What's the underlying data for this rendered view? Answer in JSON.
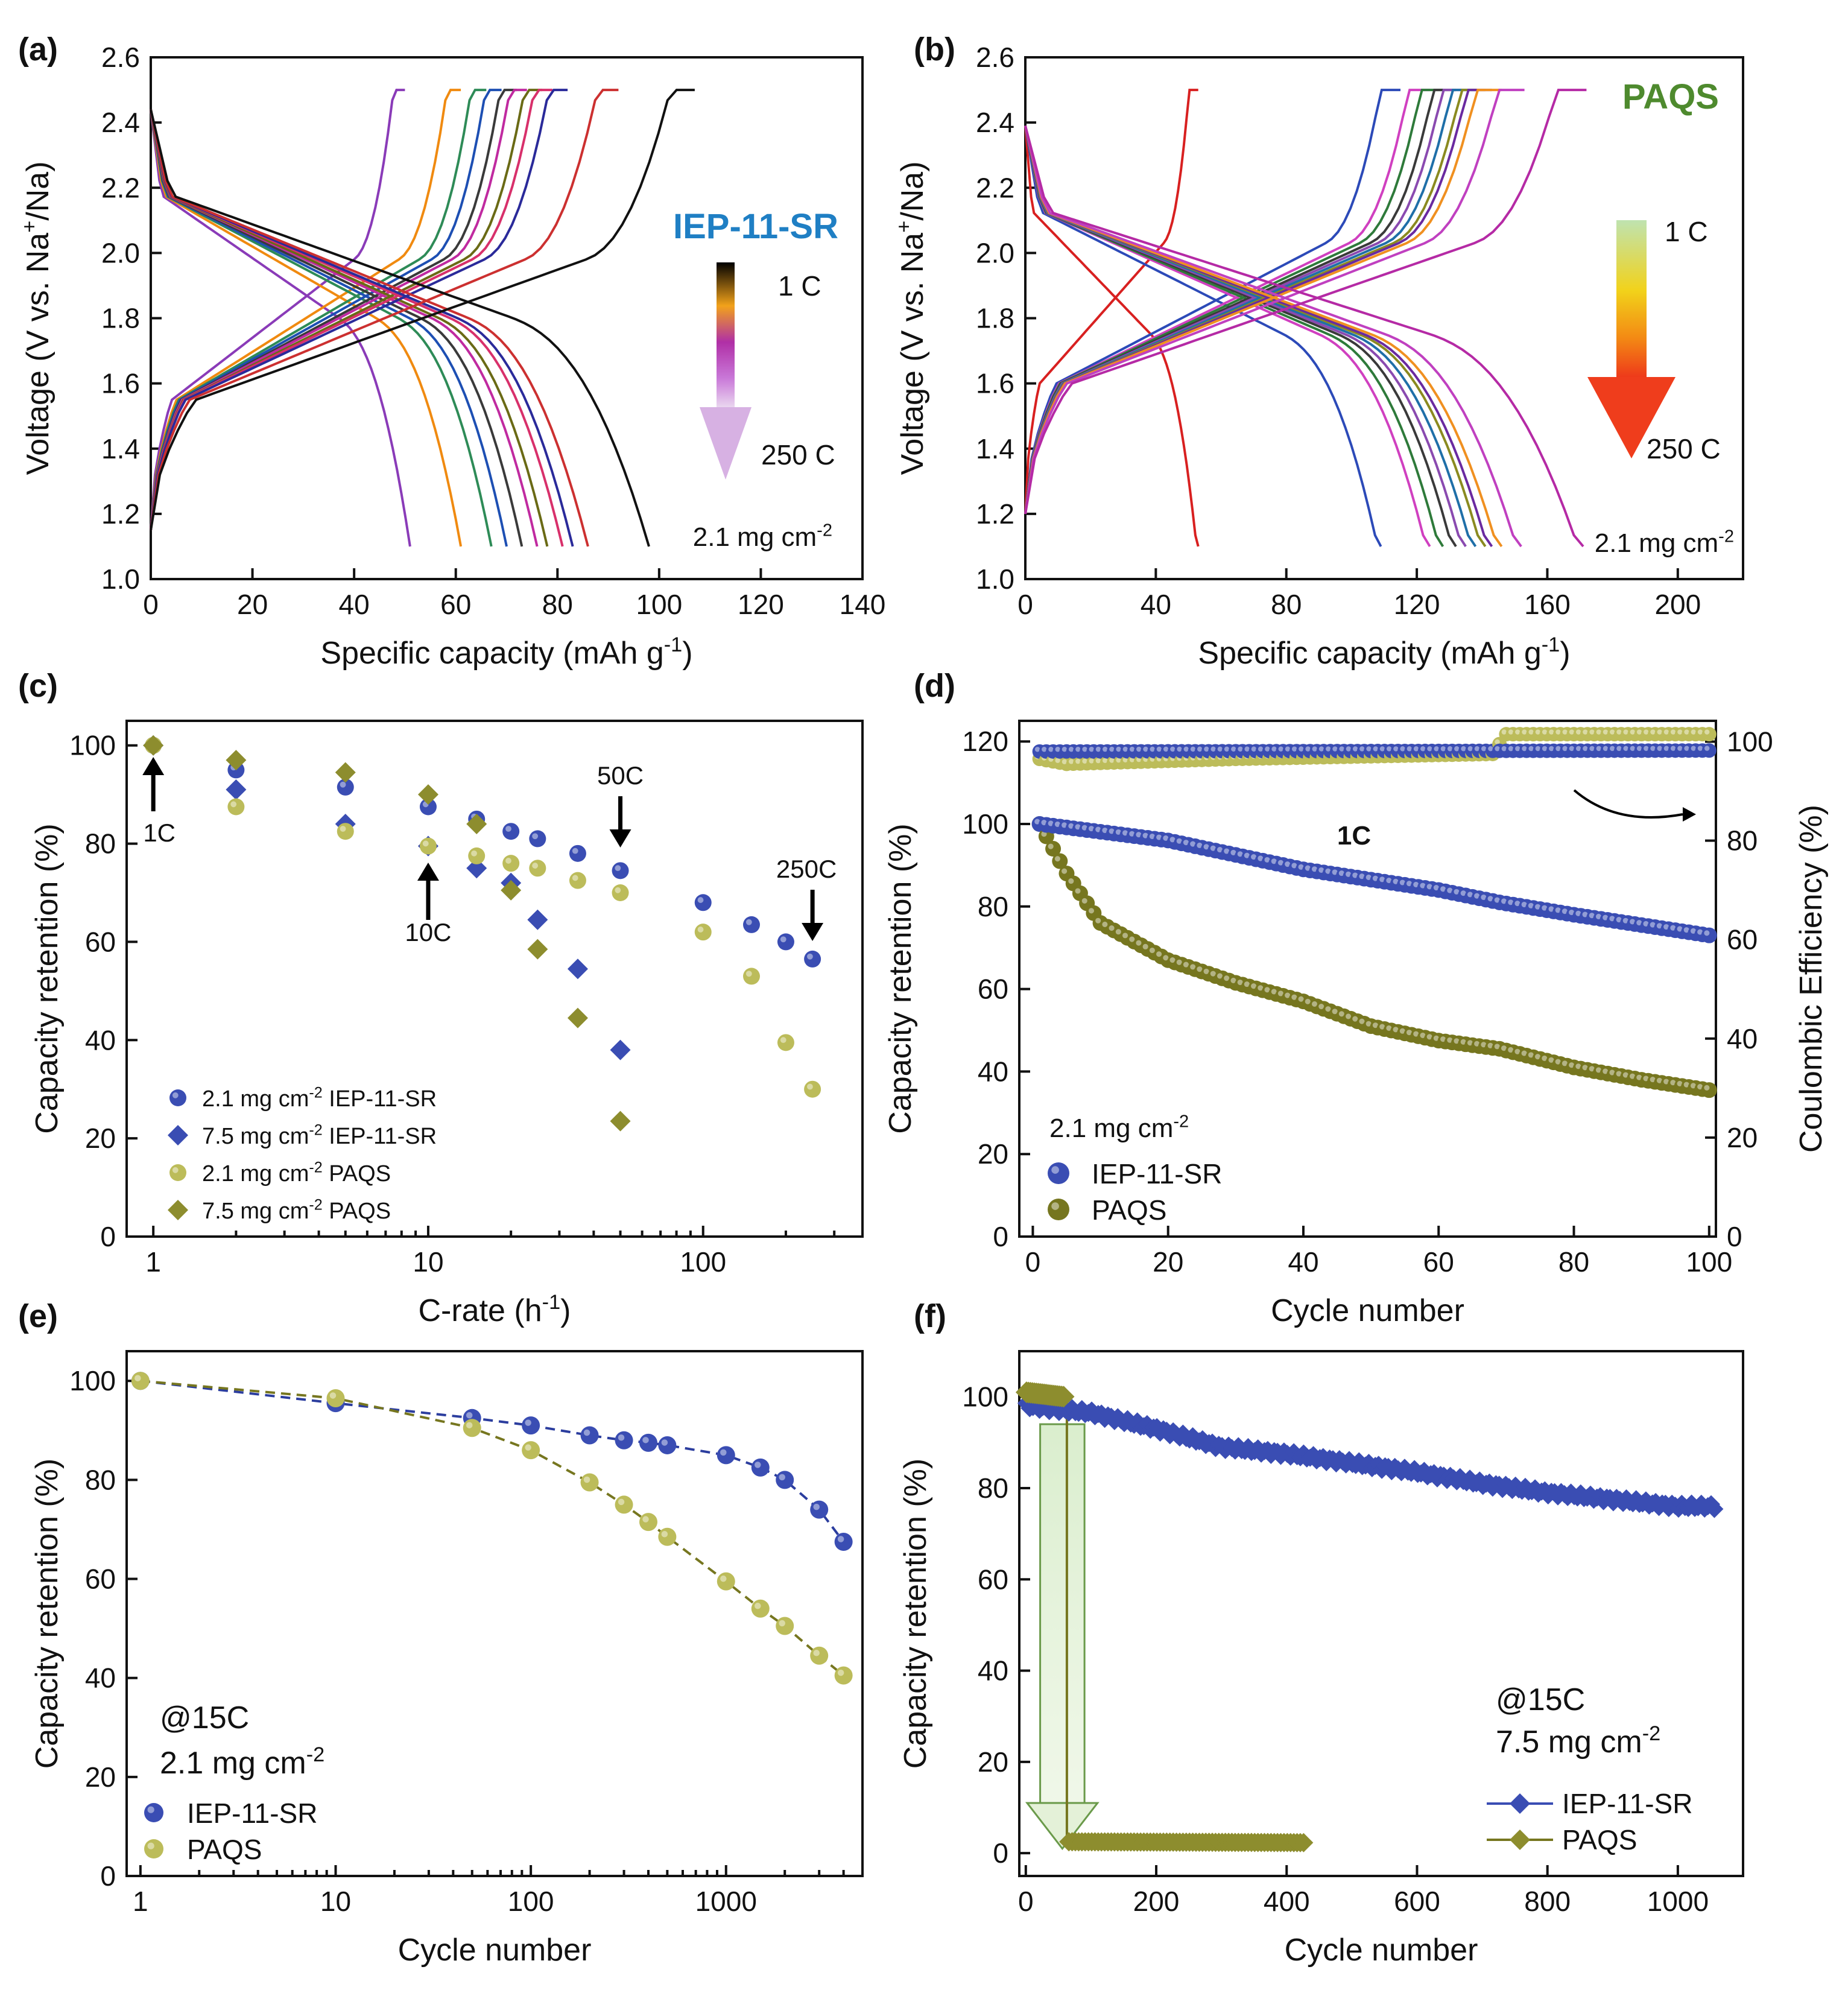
{
  "colors": {
    "axis": "#111111",
    "ieb_blue": "#3a4db3",
    "ieb_dark": "#2b3d9e",
    "paqs_olive": "#76761f",
    "paqs_light": "#bcbc5a",
    "paqs_diamond": "#8d8d2e",
    "title_blue": "#1f7fc4",
    "title_green": "#4e8a2e",
    "curves_a": [
      "#8a3bb8",
      "#f08a10",
      "#2e8b57",
      "#1d4fb3",
      "#3a3a3a",
      "#c02aa0",
      "#6a6a15",
      "#d8306b",
      "#2a2a9a",
      "#cc3030",
      "#111111"
    ],
    "curves_b": [
      "#d82020",
      "#2c4ab8",
      "#d040c0",
      "#2e7a3a",
      "#3a3a3a",
      "#8a4ab0",
      "#1f6fa8",
      "#8a8a20",
      "#6a2aa0",
      "#f09020",
      "#c040c0",
      "#b52aa5"
    ]
  },
  "panels": {
    "a": {
      "tag": "(a)",
      "ylabel": "Voltage (V vs. Na⁺/Na)",
      "ylabel_main": "Voltage (V vs. Na",
      "ylabel_sup": "+",
      "ylabel_end": "/Na)",
      "xlabel_main": "Specific capacity (mAh g",
      "xlabel_sup": "-1",
      "xlabel_end": ")",
      "title": "IEP-11-SR",
      "rate_high": "1 C",
      "rate_low": "250 C",
      "loading": "2.1 mg cm",
      "loading_sup": "-2"
    },
    "b": {
      "tag": "(b)",
      "ylabel_main": "Voltage (V vs. Na",
      "ylabel_sup": "+",
      "ylabel_end": "/Na)",
      "xlabel_main": "Specific capacity (mAh g",
      "xlabel_sup": "-1",
      "xlabel_end": ")",
      "title": "PAQS",
      "rate_high": "1 C",
      "rate_low": "250 C",
      "loading": "2.1 mg cm",
      "loading_sup": "-2"
    },
    "c": {
      "tag": "(c)",
      "ylabel": "Capacity retention (%)",
      "xlabel_main": "C-rate (h",
      "xlabel_sup": "-1",
      "xlabel_end": ")",
      "ann_1c": "1C",
      "ann_10c": "10C",
      "ann_50c": "50C",
      "ann_250c": "250C",
      "legend": [
        {
          "main": "2.1 mg cm",
          "sup": "-2",
          "tail": " IEP-11-SR"
        },
        {
          "main": "7.5 mg cm",
          "sup": "-2",
          "tail": " IEP-11-SR"
        },
        {
          "main": "2.1 mg cm",
          "sup": "-2",
          "tail": " PAQS"
        },
        {
          "main": "7.5 mg cm",
          "sup": "-2",
          "tail": " PAQS"
        }
      ]
    },
    "d": {
      "tag": "(d)",
      "ylabel": "Capacity retention (%)",
      "ylabel2": "Coulombic Efficiency (%)",
      "xlabel": "Cycle number",
      "rate": "1C",
      "loading": "2.1 mg cm",
      "loading_sup": "-2",
      "legend": [
        "IEP-11-SR",
        "PAQS"
      ]
    },
    "e": {
      "tag": "(e)",
      "ylabel": "Capacity retention (%)",
      "xlabel": "Cycle number",
      "rate": "@15C",
      "loading": "2.1 mg cm",
      "loading_sup": "-2",
      "legend": [
        "IEP-11-SR",
        "PAQS"
      ]
    },
    "f": {
      "tag": "(f)",
      "ylabel": "Capacity retention (%)",
      "xlabel": "Cycle number",
      "rate": "@15C",
      "loading": "7.5 mg cm",
      "loading_sup": "-2",
      "legend": [
        "IEP-11-SR",
        "PAQS"
      ]
    }
  },
  "chart_data": [
    {
      "id": "a",
      "type": "line",
      "title": "IEP-11-SR",
      "xlabel": "Specific capacity (mAh g-1)",
      "ylabel": "Voltage (V vs. Na+/Na)",
      "xlim": [
        0,
        140
      ],
      "ylim": [
        1.0,
        2.6
      ],
      "xticks": [
        0,
        20,
        40,
        60,
        80,
        100,
        120,
        140
      ],
      "yticks": [
        1.0,
        1.2,
        1.4,
        1.6,
        1.8,
        2.0,
        2.2,
        2.4,
        2.6
      ],
      "series_note": "charge/discharge profiles from 1 C to 250 C",
      "capacities": [
        51,
        61,
        67,
        70,
        73,
        76,
        78,
        81,
        83,
        86,
        98
      ],
      "charge_capacities": [
        50,
        61,
        66,
        69,
        72,
        74,
        77,
        79,
        82,
        92,
        107
      ]
    },
    {
      "id": "b",
      "type": "line",
      "title": "PAQS",
      "xlabel": "Specific capacity (mAh g-1)",
      "ylabel": "Voltage (V vs. Na+/Na)",
      "xlim": [
        0,
        220
      ],
      "ylim": [
        1.0,
        2.6
      ],
      "xticks": [
        0,
        40,
        80,
        120,
        160,
        200
      ],
      "yticks": [
        1.0,
        1.2,
        1.4,
        1.6,
        1.8,
        2.0,
        2.2,
        2.4,
        2.6
      ],
      "capacities": [
        53,
        109,
        124,
        128,
        132,
        135,
        138,
        141,
        143,
        146,
        152,
        171
      ],
      "charge_capacities": [
        53,
        115,
        124,
        128,
        132,
        135,
        138,
        141,
        143,
        146,
        153,
        172
      ]
    },
    {
      "id": "c",
      "type": "scatter",
      "xscale": "log",
      "xlabel": "C-rate (h-1)",
      "ylabel": "Capacity retention (%)",
      "xlim": [
        0.8,
        380
      ],
      "ylim": [
        0,
        105
      ],
      "xticks": [
        1,
        10,
        100
      ],
      "yticks": [
        0,
        20,
        40,
        60,
        80,
        100
      ],
      "series": [
        {
          "name": "2.1 mg cm-2 IEP-11-SR",
          "marker": "circle",
          "x": [
            1,
            2,
            5,
            10,
            15,
            20,
            25,
            35,
            50,
            100,
            150,
            200,
            250
          ],
          "values": [
            100,
            95,
            91.5,
            87.5,
            85,
            82.5,
            81,
            78,
            74.5,
            68,
            63.5,
            60,
            56.5
          ]
        },
        {
          "name": "7.5 mg cm-2 IEP-11-SR",
          "marker": "diamond",
          "x": [
            1,
            2,
            5,
            10,
            15,
            20,
            25,
            35,
            50
          ],
          "values": [
            100,
            91,
            84,
            79.5,
            75,
            72,
            64.5,
            54.5,
            38
          ]
        },
        {
          "name": "2.1 mg cm-2 PAQS",
          "marker": "circle",
          "x": [
            1,
            2,
            5,
            10,
            15,
            20,
            25,
            35,
            50,
            100,
            150,
            200,
            250
          ],
          "values": [
            100,
            87.5,
            82.5,
            79.5,
            77.5,
            76,
            75,
            72.5,
            70,
            62,
            53,
            39.5,
            30
          ]
        },
        {
          "name": "7.5 mg cm-2 PAQS",
          "marker": "diamond",
          "x": [
            1,
            2,
            5,
            10,
            15,
            20,
            25,
            35,
            50
          ],
          "values": [
            100,
            97,
            94.5,
            90,
            84,
            70.5,
            58.5,
            44.5,
            23.5
          ]
        }
      ]
    },
    {
      "id": "d",
      "type": "scatter",
      "xlabel": "Cycle number",
      "ylabel": "Capacity retention (%)",
      "y2label": "Coulombic Efficiency (%)",
      "xlim": [
        -2,
        101
      ],
      "ylim": [
        0,
        125
      ],
      "y2lim": [
        0,
        104.2
      ],
      "xticks": [
        0,
        20,
        40,
        60,
        80,
        100
      ],
      "yticks": [
        0,
        20,
        40,
        60,
        80,
        100,
        120
      ],
      "y2ticks": [
        0,
        20,
        40,
        60,
        80,
        100
      ],
      "series": [
        {
          "name": "IEP-11-SR",
          "axis": "left",
          "x_start": 1,
          "x_end": 100,
          "values_at": {
            "1": 100,
            "20": 96,
            "40": 89,
            "60": 84,
            "69": 81,
            "80": 78,
            "100": 73
          }
        },
        {
          "name": "PAQS",
          "axis": "left",
          "x_start": 1,
          "x_end": 100,
          "values_at": {
            "1": 100,
            "5": 88,
            "10": 76,
            "20": 67,
            "30": 61.5,
            "40": 57,
            "50": 51,
            "60": 47.5,
            "69": 45.5,
            "80": 41,
            "90": 38,
            "100": 35.5
          }
        },
        {
          "name": "IEP-11-SR CE",
          "axis": "right",
          "values_at": {
            "1": 98,
            "100": 98.2
          }
        },
        {
          "name": "PAQS CE",
          "axis": "right",
          "values_at": {
            "1": 96.5,
            "5": 95.5,
            "30": 96.5,
            "68": 97.5,
            "70": 101.5,
            "100": 101.5
          }
        }
      ]
    },
    {
      "id": "e",
      "type": "line",
      "xscale": "log",
      "xlabel": "Cycle number",
      "ylabel": "Capacity retention (%)",
      "xlim": [
        0.85,
        5000
      ],
      "ylim": [
        0,
        106
      ],
      "xticks": [
        1,
        10,
        100,
        1000
      ],
      "yticks": [
        0,
        20,
        40,
        60,
        80,
        100
      ],
      "series": [
        {
          "name": "IEP-11-SR",
          "x": [
            1,
            10,
            50,
            100,
            200,
            300,
            400,
            500,
            1000,
            1500,
            2000,
            3000,
            4000
          ],
          "values": [
            100,
            95.5,
            92.5,
            91,
            89,
            88,
            87.5,
            87,
            85,
            82.5,
            80,
            74,
            67.5
          ]
        },
        {
          "name": "PAQS",
          "x": [
            1,
            10,
            50,
            100,
            200,
            300,
            400,
            500,
            1000,
            1500,
            2000,
            3000,
            4000
          ],
          "values": [
            100,
            96.5,
            90.5,
            86,
            79.5,
            75,
            71.5,
            68.5,
            59.5,
            54,
            50.5,
            44.5,
            40.5
          ]
        }
      ]
    },
    {
      "id": "f",
      "type": "line",
      "xlabel": "Cycle number",
      "ylabel": "Capacity retention (%)",
      "xlim": [
        -10,
        1100
      ],
      "ylim": [
        -5,
        110
      ],
      "xticks": [
        0,
        200,
        400,
        600,
        800,
        1000
      ],
      "yticks": [
        0,
        20,
        40,
        60,
        80,
        100
      ],
      "series": [
        {
          "name": "IEP-11-SR",
          "values_at": {
            "1": 98,
            "100": 96.5,
            "200": 93,
            "300": 89,
            "400": 87.5,
            "500": 85.5,
            "600": 83.5,
            "700": 81,
            "800": 79,
            "900": 77.5,
            "1000": 76,
            "1060": 76
          }
        },
        {
          "name": "PAQS",
          "values_at": {
            "1": 101,
            "60": 100,
            "65": 2.5,
            "430": 2.3
          }
        }
      ]
    }
  ]
}
